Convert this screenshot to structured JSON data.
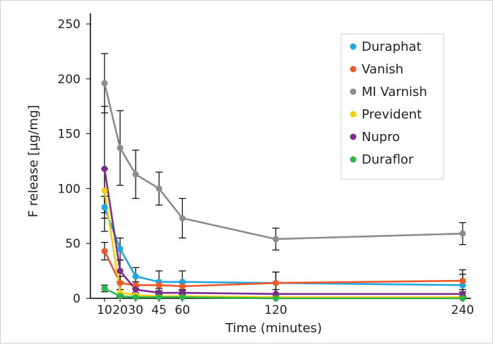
{
  "chart_data": {
    "type": "line",
    "title": "",
    "xlabel": "Time (minutes)",
    "ylabel": "F release [μg/mg]",
    "x": [
      10,
      20,
      30,
      45,
      60,
      120,
      240
    ],
    "xticks": [
      "10",
      "20",
      "30",
      "45",
      "60",
      "120",
      "240"
    ],
    "ylim": [
      0,
      250
    ],
    "yticks": [
      "0",
      "50",
      "100",
      "150",
      "200",
      "250"
    ],
    "grid": false,
    "legend_position": "top-right",
    "series": [
      {
        "name": "Duraphat",
        "color": "#1fa8e0",
        "values": [
          83,
          45,
          20,
          15,
          15,
          14,
          12
        ],
        "errors": [
          10,
          10,
          8,
          10,
          10,
          10,
          10
        ]
      },
      {
        "name": "Vanish",
        "color": "#f0582a",
        "values": [
          43,
          14,
          12,
          12,
          11,
          14,
          16
        ],
        "errors": [
          8,
          6,
          3,
          3,
          3,
          10,
          10
        ]
      },
      {
        "name": "MI Varnish",
        "color": "#8c8c8c",
        "values": [
          196,
          137,
          113,
          100,
          73,
          54,
          59
        ],
        "errors": [
          27,
          34,
          22,
          15,
          18,
          10,
          10
        ]
      },
      {
        "name": "Prevident",
        "color": "#f5d10a",
        "values": [
          98,
          5,
          3,
          2,
          2,
          1,
          1
        ],
        "errors": [
          20,
          3,
          2,
          2,
          2,
          1,
          1
        ]
      },
      {
        "name": "Nupro",
        "color": "#7b2d8e",
        "values": [
          118,
          25,
          8,
          5,
          5,
          4,
          4
        ],
        "errors": [
          57,
          10,
          3,
          2,
          2,
          4,
          4
        ]
      },
      {
        "name": "Duraflor",
        "color": "#2db54a",
        "values": [
          9,
          2,
          1,
          1,
          1,
          0,
          0
        ],
        "errors": [
          3,
          1,
          1,
          1,
          1,
          1,
          1
        ]
      }
    ]
  }
}
